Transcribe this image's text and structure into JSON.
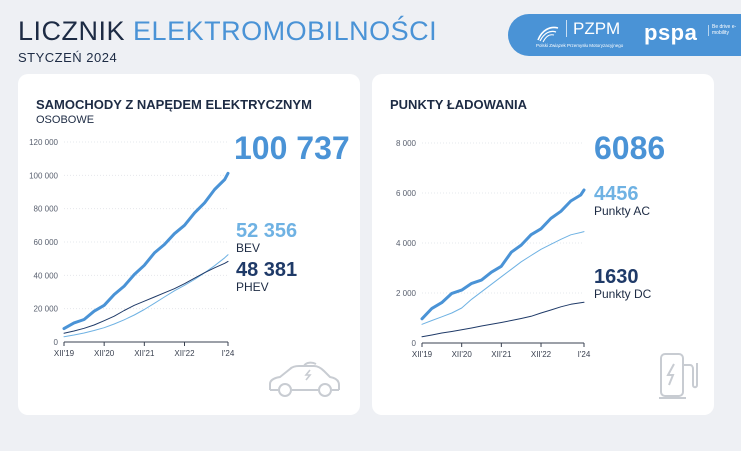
{
  "header": {
    "title_part1": "LICZNIK",
    "title_part2": "ELEKTROMOBILNOŚCI",
    "subtitle": "STYCZEŃ 2024"
  },
  "logos": {
    "pzpm": "PZPM",
    "pzpm_sub": "Polski Związek Przemysłu Motoryzacyjnego",
    "pspa": "pspa",
    "pspa_sub": "Be drive e-mobility"
  },
  "colors": {
    "accent": "#4a93d6",
    "light_blue": "#6fb2e3",
    "dark_navy": "#1f3a68",
    "text_dark": "#1d2b44"
  },
  "card_left": {
    "title": "SAMOCHODY Z NAPĘDEM ELEKTRYCZNYM",
    "subtitle": "OSOBOWE",
    "total": "100 737",
    "bev_value": "52 356",
    "bev_label": "BEV",
    "phev_value": "48 381",
    "phev_label": "PHEV",
    "icon": "electric-car-icon"
  },
  "card_right": {
    "title": "PUNKTY ŁADOWANIA",
    "total": "6086",
    "ac_value": "4456",
    "ac_label": "Punkty AC",
    "dc_value": "1630",
    "dc_label": "Punkty DC",
    "icon": "charging-station-icon"
  },
  "chart_data": [
    {
      "type": "line",
      "title": "SAMOCHODY Z NAPĘDEM ELEKTRYCZNYM",
      "subtitle": "OSOBOWE",
      "x_ticks": [
        "XII'19",
        "XII'20",
        "XII'21",
        "XII'22",
        "I'24"
      ],
      "ylim": [
        0,
        120000
      ],
      "y_ticks": [
        0,
        20000,
        40000,
        60000,
        80000,
        100000,
        120000
      ],
      "y_tick_labels": [
        "0",
        "20 000",
        "40 000",
        "60 000",
        "80 000",
        "100 000",
        "120 000"
      ],
      "grid": true,
      "x": [
        0,
        3,
        6,
        9,
        12,
        15,
        18,
        21,
        24,
        27,
        30,
        33,
        36,
        39,
        42,
        45,
        48,
        49
      ],
      "series": [
        {
          "key": "total",
          "color": "#4a93d6",
          "width": 3,
          "values": [
            8500,
            11000,
            14000,
            18000,
            22500,
            28000,
            34000,
            40000,
            46500,
            53000,
            59000,
            64500,
            70500,
            77000,
            84000,
            91000,
            98000,
            100737
          ]
        },
        {
          "key": "bev",
          "color": "#6fb2e3",
          "width": 1,
          "values": [
            3200,
            4200,
            5400,
            6900,
            8600,
            10800,
            13300,
            16200,
            19500,
            23200,
            27000,
            30700,
            34000,
            37500,
            41500,
            45800,
            50500,
            52356
          ]
        },
        {
          "key": "phev",
          "color": "#1f3a68",
          "width": 1,
          "values": [
            5300,
            6600,
            8200,
            10200,
            12800,
            15500,
            18900,
            22000,
            24500,
            27000,
            29500,
            32000,
            35000,
            38300,
            41600,
            44500,
            47200,
            48381
          ]
        }
      ]
    },
    {
      "type": "line",
      "title": "PUNKTY ŁADOWANIA",
      "x_ticks": [
        "XII'19",
        "XII'20",
        "XII'21",
        "XII'22",
        "I'24"
      ],
      "ylim": [
        0,
        8000
      ],
      "y_ticks": [
        0,
        2000,
        4000,
        6000,
        8000
      ],
      "y_tick_labels": [
        "0",
        "2 000",
        "4 000",
        "6 000",
        "8 000"
      ],
      "grid": true,
      "x": [
        0,
        3,
        6,
        9,
        12,
        15,
        18,
        21,
        24,
        27,
        30,
        33,
        36,
        39,
        42,
        45,
        48,
        49
      ],
      "series": [
        {
          "key": "total",
          "color": "#4a93d6",
          "width": 3,
          "values": [
            1000,
            1350,
            1650,
            1950,
            2150,
            2350,
            2550,
            2800,
            3100,
            3600,
            3950,
            4300,
            4600,
            4950,
            5300,
            5650,
            5950,
            6086
          ]
        },
        {
          "key": "ac",
          "color": "#6fb2e3",
          "width": 1,
          "values": [
            750,
            900,
            1050,
            1200,
            1400,
            1750,
            2050,
            2350,
            2650,
            2950,
            3250,
            3500,
            3750,
            3950,
            4150,
            4330,
            4420,
            4456
          ]
        },
        {
          "key": "dc",
          "color": "#1f3a68",
          "width": 1,
          "values": [
            250,
            320,
            400,
            460,
            530,
            600,
            680,
            750,
            820,
            900,
            980,
            1070,
            1200,
            1320,
            1450,
            1550,
            1610,
            1630
          ]
        }
      ]
    }
  ]
}
